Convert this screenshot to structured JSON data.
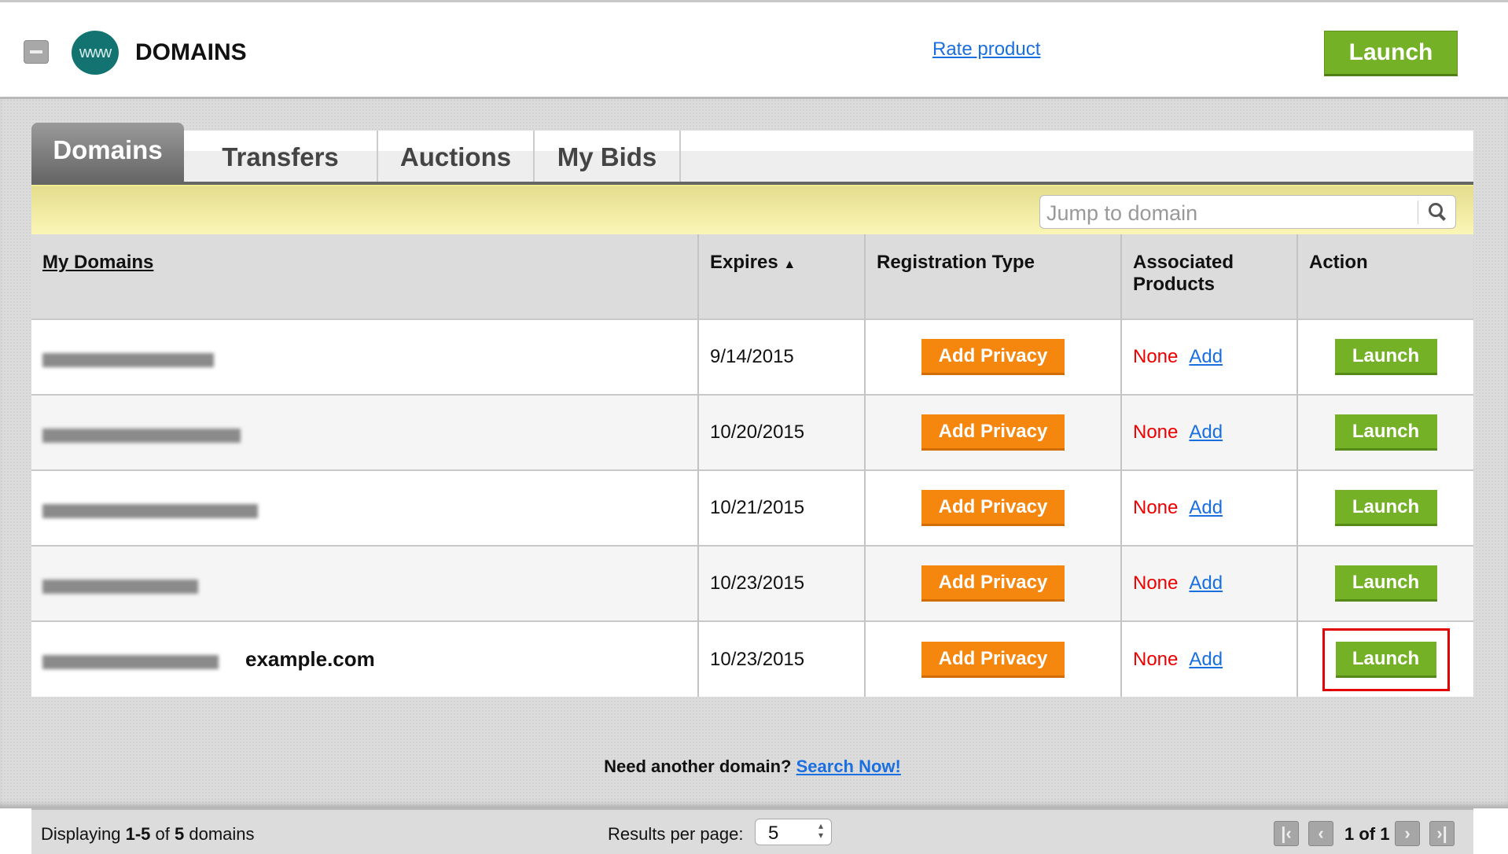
{
  "header": {
    "title": "DOMAINS",
    "logo_text": "www",
    "rate_link": "Rate product",
    "launch_label": "Launch"
  },
  "tabs": [
    {
      "label": "Domains",
      "active": true
    },
    {
      "label": "Transfers"
    },
    {
      "label": "Auctions"
    },
    {
      "label": "My Bids"
    }
  ],
  "search": {
    "placeholder": "Jump to domain"
  },
  "table": {
    "columns": [
      "My Domains",
      "Expires",
      "Registration Type",
      "Associated Products",
      "Action"
    ],
    "sort_indicator": "▲",
    "rows": [
      {
        "domain_note": "",
        "expires": "9/14/2015",
        "registration": "Add Privacy",
        "products": "None",
        "add": "Add",
        "action": "Launch"
      },
      {
        "domain_note": "",
        "expires": "10/20/2015",
        "registration": "Add Privacy",
        "products": "None",
        "add": "Add",
        "action": "Launch"
      },
      {
        "domain_note": "",
        "expires": "10/21/2015",
        "registration": "Add Privacy",
        "products": "None",
        "add": "Add",
        "action": "Launch"
      },
      {
        "domain_note": "",
        "expires": "10/23/2015",
        "registration": "Add Privacy",
        "products": "None",
        "add": "Add",
        "action": "Launch"
      },
      {
        "domain_note": "example.com",
        "expires": "10/23/2015",
        "registration": "Add Privacy",
        "products": "None",
        "add": "Add",
        "action": "Launch",
        "highlighted": true
      }
    ]
  },
  "footer": {
    "displaying_prefix": "Displaying ",
    "range": "1-5",
    "of": " of ",
    "total": "5",
    "suffix": " domains",
    "results_per_page_label": "Results per page:",
    "results_per_page": "5",
    "page_text": "1 of 1"
  },
  "bottom": {
    "prompt": "Need another domain?",
    "link": "Search Now!"
  },
  "colors": {
    "launch_green": "#74b127",
    "privacy_orange": "#f5870f",
    "none_red": "#e00000",
    "link_blue": "#1a6fe0",
    "highlight_red": "#e20000"
  }
}
